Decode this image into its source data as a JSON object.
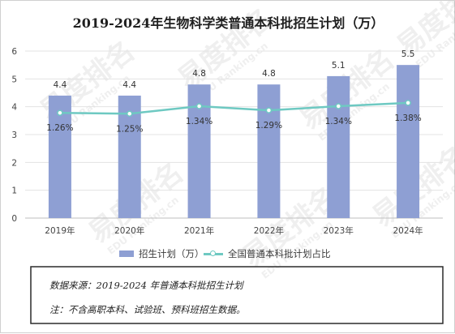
{
  "title": "2019-2024年生物科学类普通本科批招生计划（万）",
  "chart_data": {
    "type": "bar",
    "categories": [
      "2019年",
      "2020年",
      "2021年",
      "2022年",
      "2023年",
      "2024年"
    ],
    "series": [
      {
        "name": "招生计划（万）",
        "type": "bar",
        "axis": "left",
        "values": [
          4.4,
          4.4,
          4.8,
          4.8,
          5.1,
          5.5
        ],
        "labels": [
          "4.4",
          "4.4",
          "4.8",
          "4.8",
          "5.1",
          "5.5"
        ],
        "color": "#8e9fd3"
      },
      {
        "name": "全国普通本科批计划占比",
        "type": "line",
        "axis": "right",
        "values": [
          1.26,
          1.25,
          1.34,
          1.29,
          1.34,
          1.38
        ],
        "labels": [
          "1.26%",
          "1.25%",
          "1.34%",
          "1.29%",
          "1.34%",
          "1.38%"
        ],
        "color": "#6ec9c2"
      }
    ],
    "yticks": [
      "0",
      "1",
      "2",
      "3",
      "4",
      "5",
      "6"
    ],
    "ylim": [
      0,
      6
    ],
    "ylim_secondary": [
      0,
      2
    ],
    "secondary_axis_labels_shown": false,
    "grid": "horizontal",
    "legend_position": "bottom"
  },
  "legend": {
    "bar_label": "招生计划（万）",
    "line_label": "全国普通本科批计划占比"
  },
  "notes": {
    "source": "数据来源：2019-2024 年普通本科批招生计划",
    "remark": "注：不含高职本科、试验班、预科班招生数据。"
  },
  "watermark": {
    "text_cn": "易度排名",
    "text_en": "EDU Ranking.cn"
  }
}
